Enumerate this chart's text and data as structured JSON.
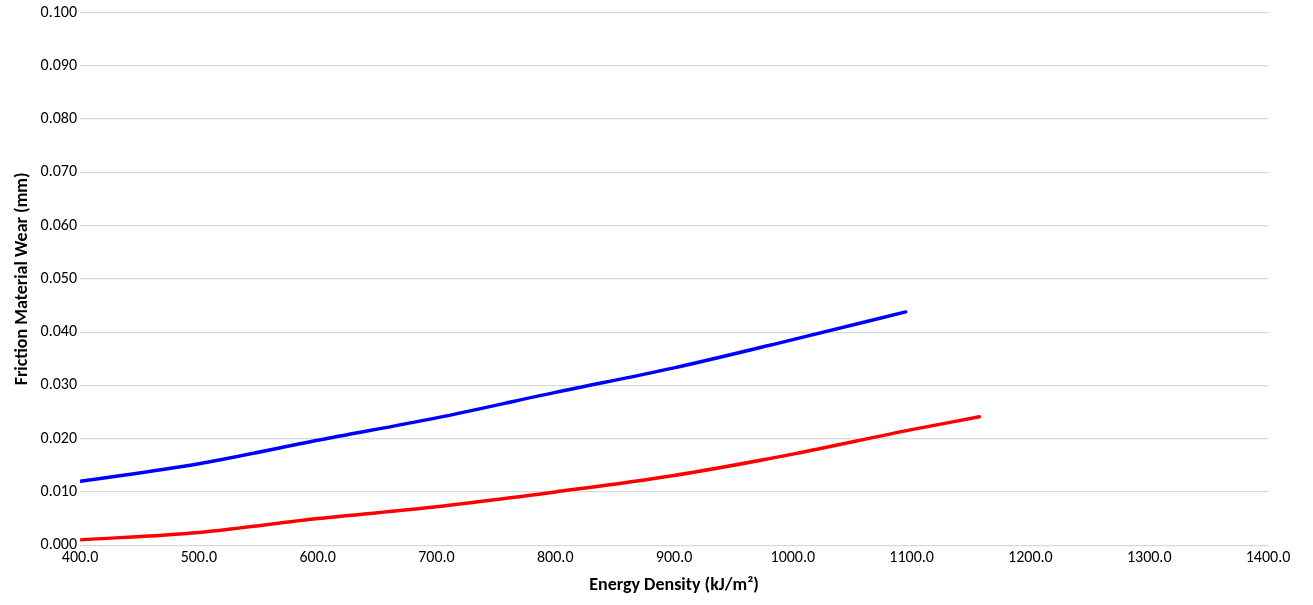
{
  "chart_data": {
    "type": "line",
    "xlabel": "Energy Density (kJ/m²)",
    "ylabel": "Friction Material Wear (mm)",
    "xlim": [
      400,
      1400
    ],
    "xticks": [
      {
        "value": 400,
        "label": "400.0"
      },
      {
        "value": 500,
        "label": "500.0"
      },
      {
        "value": 600,
        "label": "600.0"
      },
      {
        "value": 700,
        "label": "700.0"
      },
      {
        "value": 800,
        "label": "800.0"
      },
      {
        "value": 900,
        "label": "900.0"
      },
      {
        "value": 1000,
        "label": "1000.0"
      },
      {
        "value": 1100,
        "label": "1100.0"
      },
      {
        "value": 1200,
        "label": "1200.0"
      },
      {
        "value": 1300,
        "label": "1300.0"
      },
      {
        "value": 1400,
        "label": "1400.0"
      }
    ],
    "ylim": [
      0,
      0.1
    ],
    "yticks": [
      {
        "value": 0,
        "label": "0.000"
      },
      {
        "value": 0.01,
        "label": "0.010"
      },
      {
        "value": 0.02,
        "label": "0.020"
      },
      {
        "value": 0.03,
        "label": "0.030"
      },
      {
        "value": 0.04,
        "label": "0.040"
      },
      {
        "value": 0.05,
        "label": "0.050"
      },
      {
        "value": 0.06,
        "label": "0.060"
      },
      {
        "value": 0.07,
        "label": "0.070"
      },
      {
        "value": 0.08,
        "label": "0.080"
      },
      {
        "value": 0.09,
        "label": "0.090"
      },
      {
        "value": 0.1,
        "label": "0.100"
      }
    ],
    "grid": "y",
    "marker": "none",
    "line_style": "solid",
    "legend": false,
    "series": [
      {
        "color": "#0000ff",
        "x": [
          400,
          500,
          600,
          700,
          800,
          900,
          1000,
          1095
        ],
        "values": [
          0.012,
          0.0153,
          0.0197,
          0.0239,
          0.0287,
          0.0333,
          0.0386,
          0.0438
        ]
      },
      {
        "color": "#ff0000",
        "x": [
          400,
          500,
          600,
          700,
          800,
          900,
          1000,
          1100,
          1157
        ],
        "values": [
          0.001,
          0.0024,
          0.005,
          0.0072,
          0.01,
          0.0131,
          0.0171,
          0.0217,
          0.0241
        ]
      }
    ]
  }
}
